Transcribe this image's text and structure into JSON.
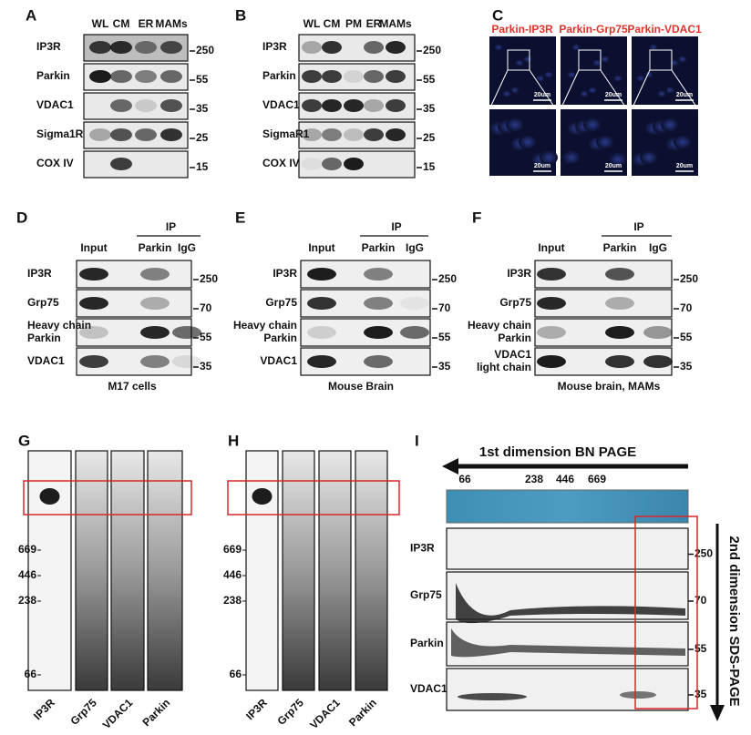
{
  "A": {
    "label": "A",
    "lanes": [
      "WL",
      "CM",
      "ER",
      "MAMs"
    ],
    "rows": [
      {
        "name": "IP3R",
        "marker": 250
      },
      {
        "name": "Parkin",
        "marker": 55
      },
      {
        "name": "VDAC1",
        "marker": 35
      },
      {
        "name": "Sigma1R",
        "marker": 25
      },
      {
        "name": "COX IV",
        "marker": 15
      }
    ]
  },
  "B": {
    "label": "B",
    "lanes": [
      "WL",
      "CM",
      "PM",
      "ER",
      "MAMs"
    ],
    "rows": [
      {
        "name": "IP3R",
        "marker": 250
      },
      {
        "name": "Parkin",
        "marker": 55
      },
      {
        "name": "VDAC1",
        "marker": 35
      },
      {
        "name": "SigmaR1",
        "marker": 25
      },
      {
        "name": "COX IV",
        "marker": 15
      }
    ]
  },
  "C": {
    "label": "C",
    "titles": [
      "Parkin-IP3R",
      "Parkin-Grp75",
      "Parkin-VDAC1"
    ],
    "scale_bar": "20um"
  },
  "D": {
    "label": "D",
    "input": "Input",
    "ip": "IP",
    "ip_lanes": [
      "Parkin",
      "IgG"
    ],
    "rows": [
      {
        "name": "IP3R",
        "marker": 250
      },
      {
        "name": "Grp75",
        "marker": 70
      },
      {
        "name": [
          "Heavy chain",
          "Parkin"
        ],
        "marker": 55
      },
      {
        "name": "VDAC1",
        "marker": 35
      }
    ],
    "caption": "M17 cells"
  },
  "E": {
    "label": "E",
    "input": "Input",
    "ip": "IP",
    "ip_lanes": [
      "Parkin",
      "IgG"
    ],
    "rows": [
      {
        "name": "IP3R",
        "marker": 250
      },
      {
        "name": "Grp75",
        "marker": 70
      },
      {
        "name": [
          "Heavy chain",
          "Parkin"
        ],
        "marker": 55
      },
      {
        "name": "VDAC1",
        "marker": 35
      }
    ],
    "caption": "Mouse Brain"
  },
  "F": {
    "label": "F",
    "input": "Input",
    "ip": "IP",
    "ip_lanes": [
      "Parkin",
      "IgG"
    ],
    "rows": [
      {
        "name": "IP3R",
        "marker": 250
      },
      {
        "name": "Grp75",
        "marker": 70
      },
      {
        "name": [
          "Heavy chain",
          "Parkin"
        ],
        "marker": 55
      },
      {
        "name": [
          "VDAC1",
          "light chain"
        ],
        "marker": 35
      }
    ],
    "caption": "Mouse brain, MAMs"
  },
  "G": {
    "label": "G",
    "markers": [
      669,
      446,
      238,
      66
    ],
    "lanes": [
      "IP3R",
      "Grp75",
      "VDAC1",
      "Parkin"
    ]
  },
  "H": {
    "label": "H",
    "markers": [
      669,
      446,
      238,
      66
    ],
    "lanes": [
      "IP3R",
      "Grp75",
      "VDAC1",
      "Parkin"
    ]
  },
  "I": {
    "label": "I",
    "first_dim": "1st  dimension BN PAGE",
    "markers": [
      66,
      238,
      446,
      669
    ],
    "rows": [
      {
        "name": "IP3R",
        "marker": 250
      },
      {
        "name": "Grp75",
        "marker": 70
      },
      {
        "name": "Parkin",
        "marker": 55
      },
      {
        "name": "VDAC1",
        "marker": 35
      }
    ],
    "second_dim": "2nd dimension SDS-PAGE"
  }
}
